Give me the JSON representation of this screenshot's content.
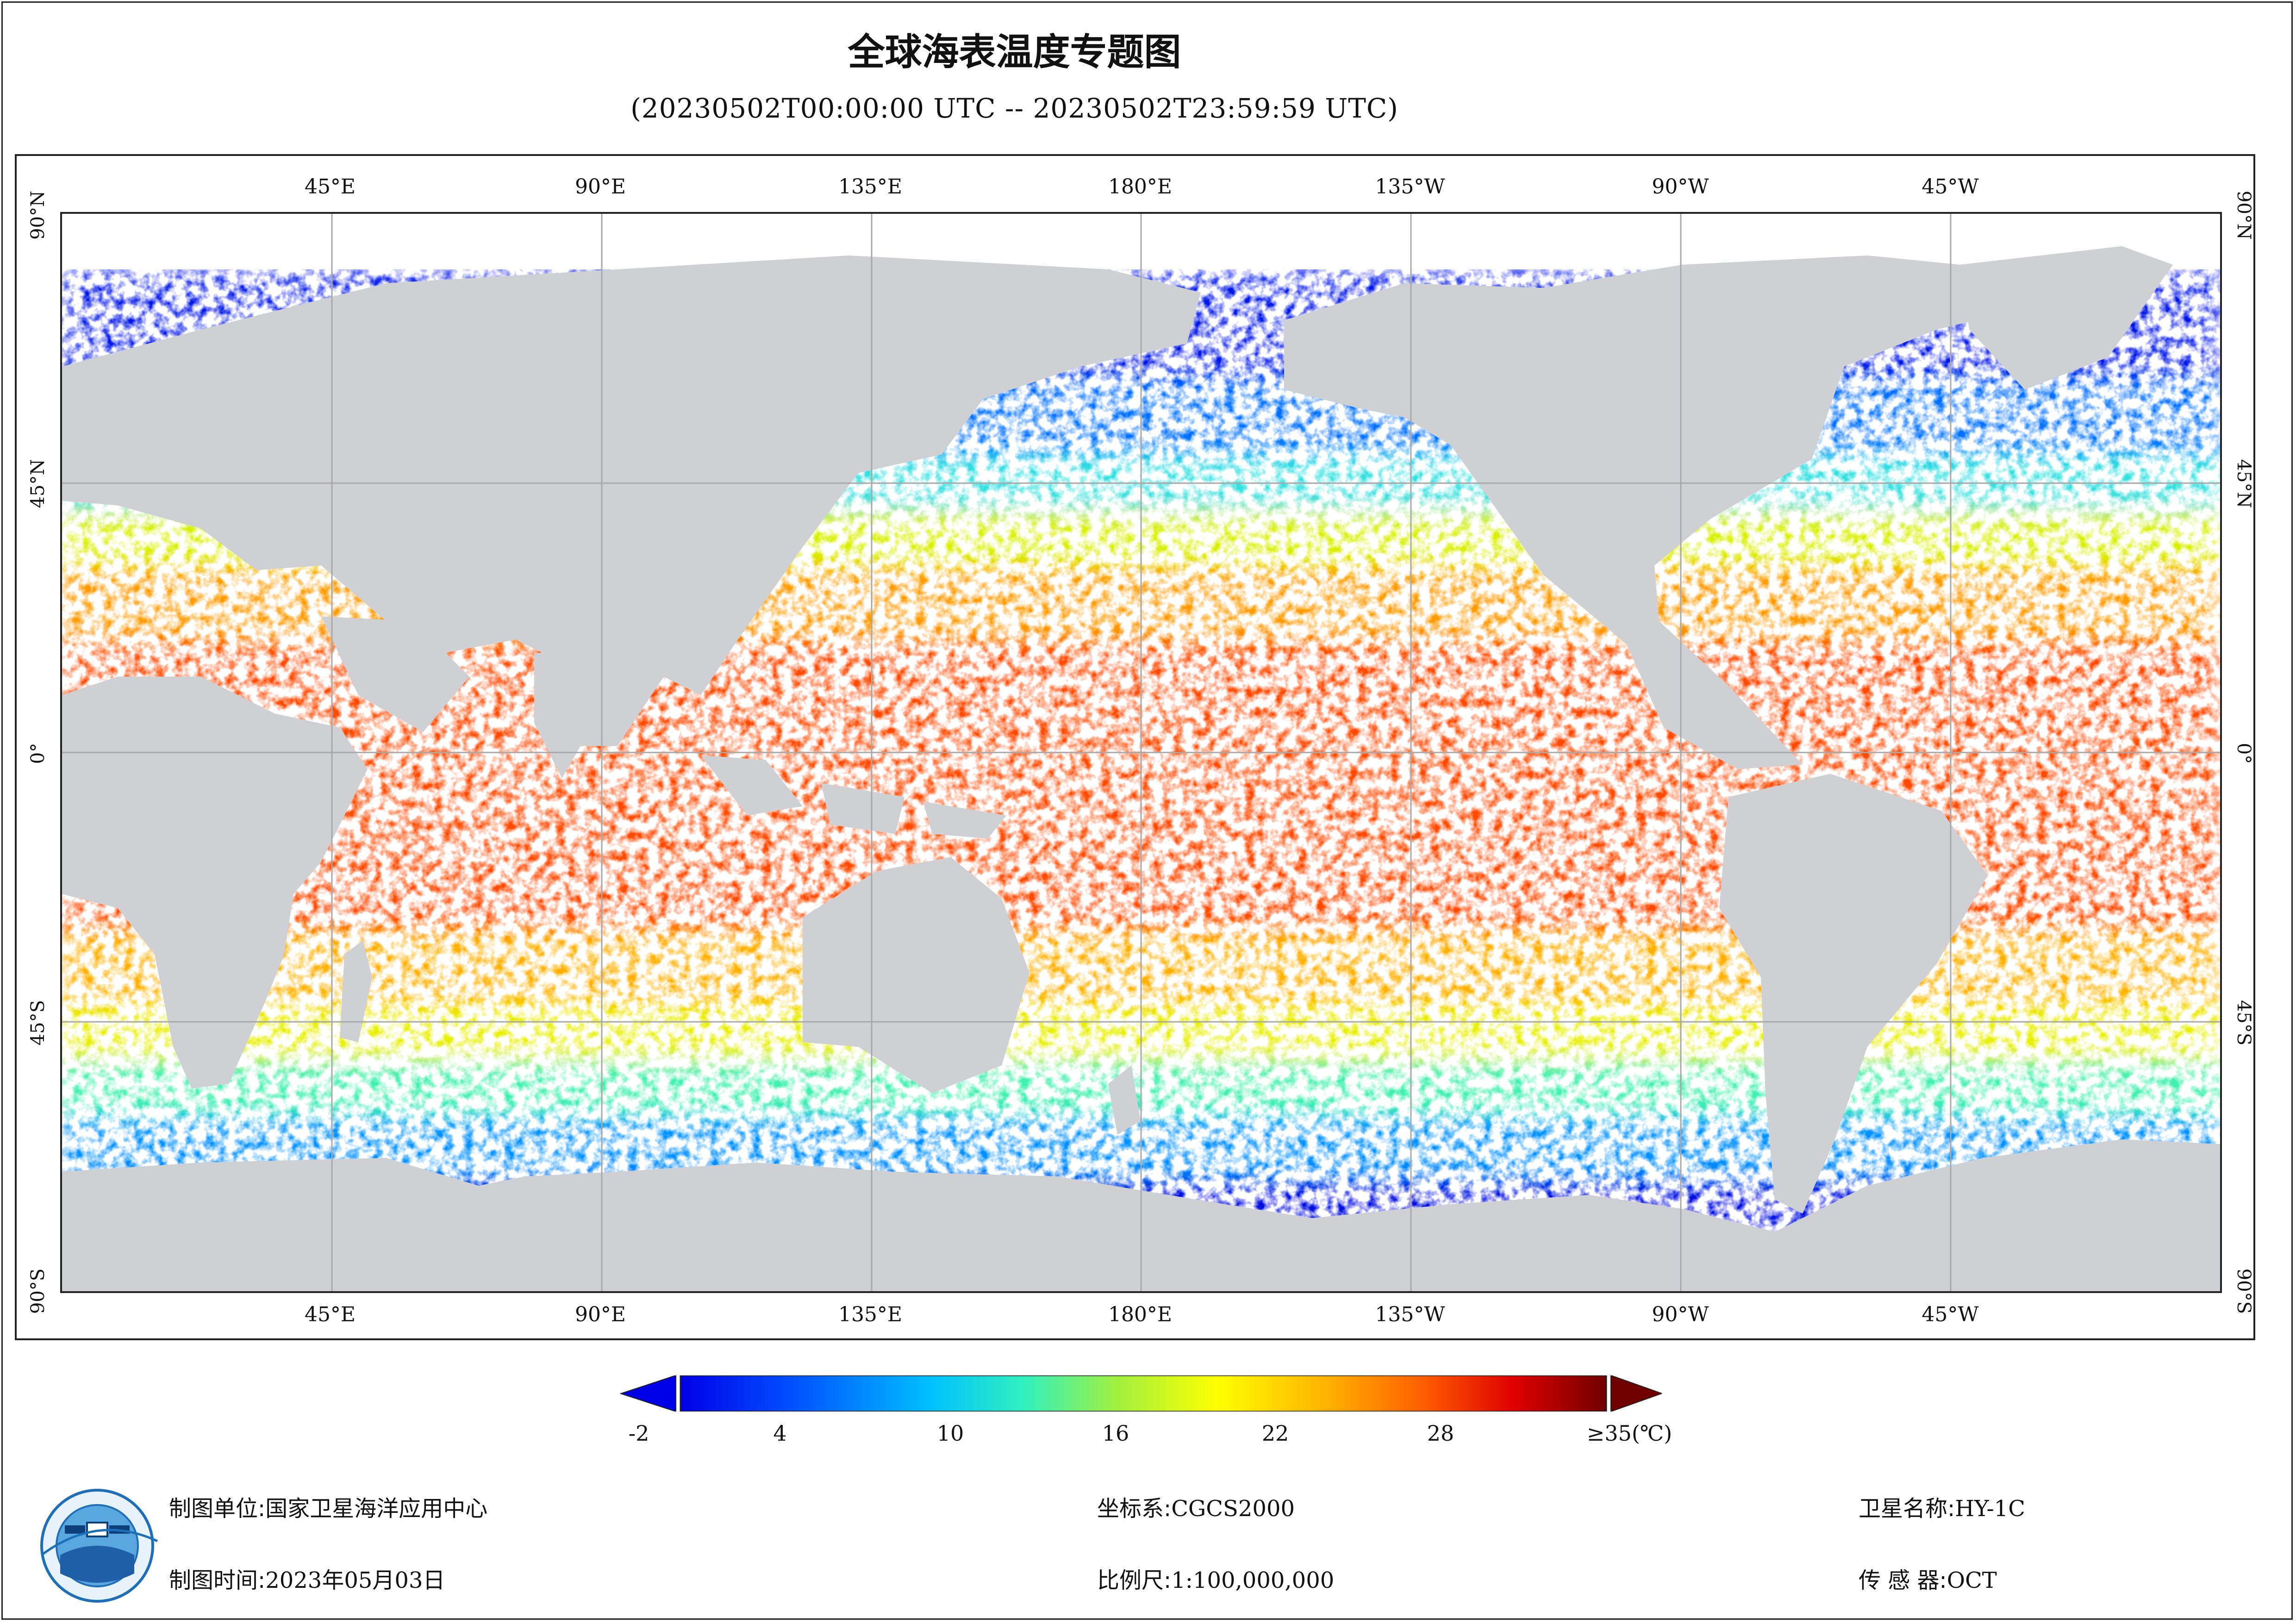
{
  "title": "全球海表温度专题图",
  "subtitle": "(20230502T00:00:00 UTC -- 20230502T23:59:59 UTC)",
  "map": {
    "lon_labels": [
      "45°E",
      "90°E",
      "135°E",
      "180°E",
      "135°W",
      "90°W",
      "45°W"
    ],
    "lat_labels": [
      "90°N",
      "45°N",
      "0°",
      "45°S",
      "90°S"
    ],
    "colors": {
      "land": "#cfd0d3",
      "no_data": "#ffffff",
      "grid": "#a8a8a8"
    },
    "legend": {
      "tick_labels": [
        "-2",
        "4",
        "10",
        "16",
        "22",
        "28",
        "≥35(℃)"
      ],
      "range": [
        -2,
        35
      ],
      "unit": "℃",
      "colormap": [
        "#0000e6",
        "#0050ff",
        "#00c0ff",
        "#30f0c0",
        "#a0f040",
        "#ffff00",
        "#ffb000",
        "#ff6000",
        "#e00000",
        "#700000"
      ]
    }
  },
  "footer": {
    "producer_label": "制图单位:",
    "producer_value": "国家卫星海洋应用中心",
    "time_label": "制图时间:",
    "time_value": "2023年05月03日",
    "crs_label": "坐标系:",
    "crs_value": "CGCS2000",
    "scale_label": "比例尺:",
    "scale_value": "1:100,000,000",
    "satellite_label": "卫星名称:",
    "satellite_value": "HY-1C",
    "sensor_label": "传 感 器:",
    "sensor_value": "OCT"
  }
}
